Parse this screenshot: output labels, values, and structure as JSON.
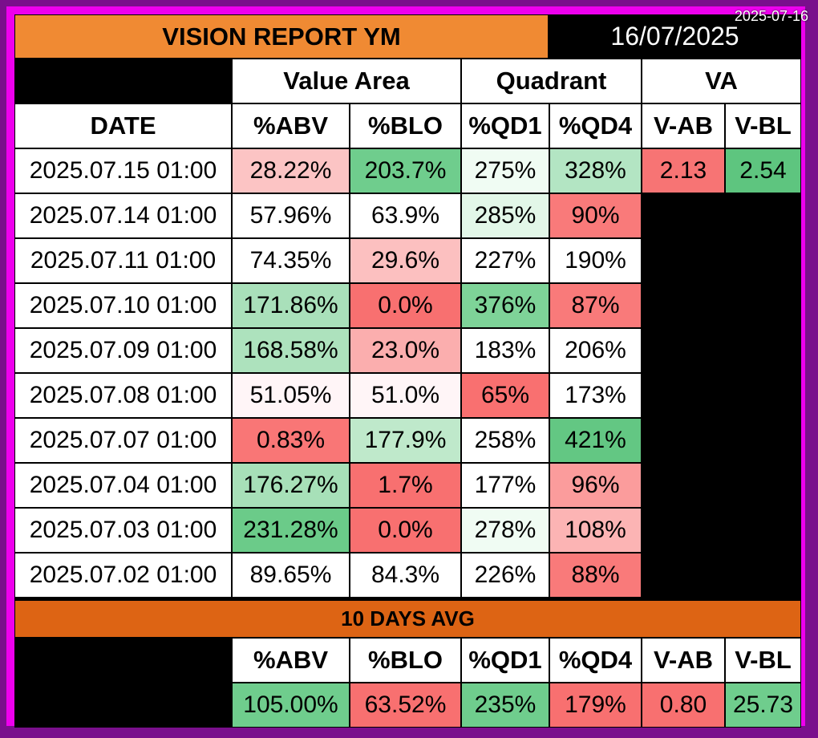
{
  "title": "VISION REPORT YM",
  "report_date": "16/07/2025",
  "stamp": "2025-07-16",
  "groups": {
    "value_area": "Value Area",
    "quadrant": "Quadrant",
    "va": "VA"
  },
  "columns": {
    "date": "DATE",
    "abv": "%ABV",
    "blo": "%BLO",
    "qd1": "%QD1",
    "qd4": "%QD4",
    "vab": "V-AB",
    "vbl": "V-BL"
  },
  "rows": [
    {
      "date": "2025.07.15 01:00",
      "abv": "28.22%",
      "blo": "203.7%",
      "qd1": "275%",
      "qd4": "328%",
      "vab": "2.13",
      "vbl": "2.54"
    },
    {
      "date": "2025.07.14 01:00",
      "abv": "57.96%",
      "blo": "63.9%",
      "qd1": "285%",
      "qd4": "90%"
    },
    {
      "date": "2025.07.11 01:00",
      "abv": "74.35%",
      "blo": "29.6%",
      "qd1": "227%",
      "qd4": "190%"
    },
    {
      "date": "2025.07.10 01:00",
      "abv": "171.86%",
      "blo": "0.0%",
      "qd1": "376%",
      "qd4": "87%"
    },
    {
      "date": "2025.07.09 01:00",
      "abv": "168.58%",
      "blo": "23.0%",
      "qd1": "183%",
      "qd4": "206%"
    },
    {
      "date": "2025.07.08 01:00",
      "abv": "51.05%",
      "blo": "51.0%",
      "qd1": "65%",
      "qd4": "173%"
    },
    {
      "date": "2025.07.07 01:00",
      "abv": "0.83%",
      "blo": "177.9%",
      "qd1": "258%",
      "qd4": "421%"
    },
    {
      "date": "2025.07.04 01:00",
      "abv": "176.27%",
      "blo": "1.7%",
      "qd1": "177%",
      "qd4": "96%"
    },
    {
      "date": "2025.07.03 01:00",
      "abv": "231.28%",
      "blo": "0.0%",
      "qd1": "278%",
      "qd4": "108%"
    },
    {
      "date": "2025.07.02 01:00",
      "abv": "89.65%",
      "blo": "84.3%",
      "qd1": "226%",
      "qd4": "88%"
    }
  ],
  "row_colors": [
    {
      "abv": "#fcc4c4",
      "blo": "#6fcd8d",
      "qd1": "#f0fcf3",
      "qd4": "#b3e5c3",
      "vab": "#f77474",
      "vbl": "#5ec57f"
    },
    {
      "abv": "#ffffff",
      "blo": "#ffffff",
      "qd1": "#e2f7e8",
      "qd4": "#f97a7a"
    },
    {
      "abv": "#ffffff",
      "blo": "#fcc0c0",
      "qd1": "#ffffff",
      "qd4": "#ffffff"
    },
    {
      "abv": "#a9e0ba",
      "blo": "#f87070",
      "qd1": "#7ed398",
      "qd4": "#f97a7a"
    },
    {
      "abv": "#ade2bd",
      "blo": "#fbaeae",
      "qd1": "#ffffff",
      "qd4": "#ffffff"
    },
    {
      "abv": "#fff5f7",
      "blo": "#fff5f7",
      "qd1": "#f97070",
      "qd4": "#ffffff"
    },
    {
      "abv": "#f97676",
      "blo": "#bfe9cb",
      "qd1": "#ffffff",
      "qd4": "#63c783"
    },
    {
      "abv": "#a7e0b8",
      "blo": "#f87070",
      "qd1": "#ffffff",
      "qd4": "#fb9c9c"
    },
    {
      "abv": "#6bcb89",
      "blo": "#f87070",
      "qd1": "#f0fcf3",
      "qd4": "#fcb4b4"
    },
    {
      "abv": "#ffffff",
      "blo": "#ffffff",
      "qd1": "#ffffff",
      "qd4": "#f97a7a"
    }
  ],
  "avg": {
    "label": "10 DAYS AVG",
    "values": {
      "abv": "105.00%",
      "blo": "63.52%",
      "qd1": "235%",
      "qd4": "179%",
      "vab": "0.80",
      "vbl": "25.73"
    },
    "colors": {
      "abv": "#6fcd8d",
      "blo": "#f87070",
      "qd1": "#6fcd8d",
      "qd4": "#f87070",
      "vab": "#f87070",
      "vbl": "#6fcd8d"
    }
  }
}
